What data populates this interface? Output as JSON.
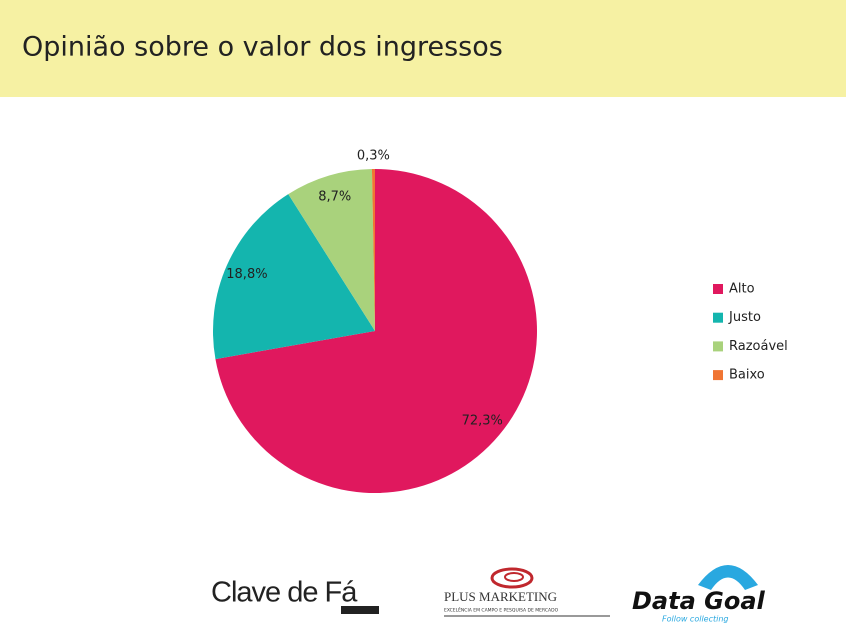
{
  "chart_data": {
    "type": "pie",
    "title": "Opinião sobre o valor dos ingressos",
    "categories": [
      "Alto",
      "Justo",
      "Razoável",
      "Baixo"
    ],
    "values": [
      72.3,
      18.8,
      8.7,
      0.3
    ],
    "value_labels": [
      "72,3%",
      "18,8%",
      "8,7%",
      "0,3%"
    ],
    "colors": [
      "#e0185e",
      "#14b5ae",
      "#a9d27c",
      "#f07533"
    ],
    "legend": "right"
  },
  "logos": {
    "clave": "Clave de Fá",
    "plus": "PLUS MARKETING",
    "plus_tagline": "EXCELÊNCIA EM CAMPO E PESQUISA DE MERCADO",
    "datagoal": "Data Goal",
    "datagoal_tagline": "Follow collecting"
  }
}
